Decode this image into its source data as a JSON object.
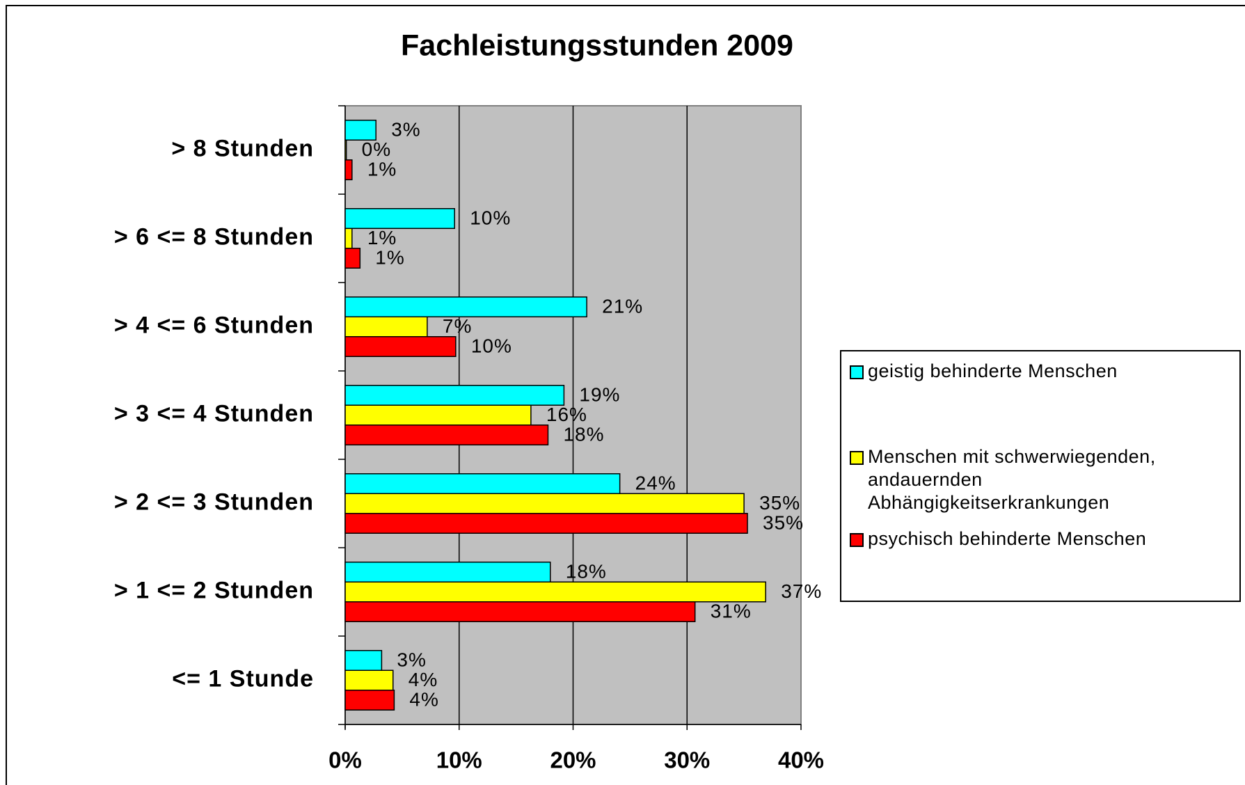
{
  "chart_data": {
    "type": "bar",
    "orientation": "horizontal",
    "title": "Fachleistungsstunden 2009",
    "categories": [
      "> 8 Stunden",
      "> 6 <= 8 Stunden",
      "> 4 <= 6 Stunden",
      "> 3 <= 4 Stunden",
      "> 2 <= 3 Stunden",
      "> 1 <= 2 Stunden",
      "<= 1 Stunde"
    ],
    "series": [
      {
        "name": "geistig behinderte Menschen",
        "color": "#00ffff",
        "values": [
          2.7,
          9.6,
          21.2,
          19.2,
          24.1,
          18.0,
          3.2
        ],
        "value_labels": [
          "3%",
          "10%",
          "21%",
          "19%",
          "24%",
          "18%",
          "3%"
        ]
      },
      {
        "name": "Menschen mit schwerwiegenden, andauernden Abhängigkeitserkrankungen",
        "color": "#ffff00",
        "values": [
          0.1,
          0.6,
          7.2,
          16.3,
          35.0,
          36.9,
          4.2
        ],
        "value_labels": [
          "0%",
          "1%",
          "7%",
          "16%",
          "35%",
          "37%",
          "4%"
        ]
      },
      {
        "name": "psychisch behinderte Menschen",
        "color": "#ff0000",
        "values": [
          0.6,
          1.3,
          9.7,
          17.8,
          35.3,
          30.7,
          4.3
        ],
        "value_labels": [
          "1%",
          "1%",
          "10%",
          "18%",
          "35%",
          "31%",
          "4%"
        ]
      }
    ],
    "xlim": [
      0,
      40
    ],
    "xticks": [
      {
        "value": 0,
        "label": "0%"
      },
      {
        "value": 10,
        "label": "10%"
      },
      {
        "value": 20,
        "label": "20%"
      },
      {
        "value": 30,
        "label": "30%"
      },
      {
        "value": 40,
        "label": "40%"
      }
    ],
    "grid": true,
    "legend": "right"
  }
}
